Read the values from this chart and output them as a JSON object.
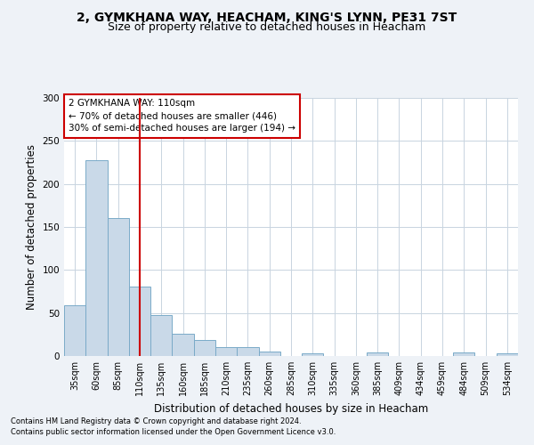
{
  "title_line1": "2, GYMKHANA WAY, HEACHAM, KING'S LYNN, PE31 7ST",
  "title_line2": "Size of property relative to detached houses in Heacham",
  "xlabel": "Distribution of detached houses by size in Heacham",
  "ylabel": "Number of detached properties",
  "footnote1": "Contains HM Land Registry data © Crown copyright and database right 2024.",
  "footnote2": "Contains public sector information licensed under the Open Government Licence v3.0.",
  "bin_labels": [
    "35sqm",
    "60sqm",
    "85sqm",
    "110sqm",
    "135sqm",
    "160sqm",
    "185sqm",
    "210sqm",
    "235sqm",
    "260sqm",
    "285sqm",
    "310sqm",
    "335sqm",
    "360sqm",
    "385sqm",
    "409sqm",
    "434sqm",
    "459sqm",
    "484sqm",
    "509sqm",
    "534sqm"
  ],
  "bar_values": [
    59,
    228,
    160,
    81,
    48,
    26,
    19,
    10,
    10,
    5,
    0,
    3,
    0,
    0,
    4,
    0,
    0,
    0,
    4,
    0,
    3
  ],
  "bar_color": "#c9d9e8",
  "bar_edge_color": "#7aaac8",
  "bar_edge_width": 0.7,
  "vline_x": 3,
  "vline_color": "#cc0000",
  "annotation_text": "2 GYMKHANA WAY: 110sqm\n← 70% of detached houses are smaller (446)\n30% of semi-detached houses are larger (194) →",
  "box_edge_color": "#cc0000",
  "ylim": [
    0,
    300
  ],
  "yticks": [
    0,
    50,
    100,
    150,
    200,
    250,
    300
  ],
  "bg_color": "#eef2f7",
  "plot_bg_color": "#ffffff",
  "grid_color": "#c8d4e0",
  "title_fontsize": 10,
  "subtitle_fontsize": 9,
  "ylabel_fontsize": 8.5,
  "xlabel_fontsize": 8.5,
  "tick_fontsize": 7,
  "annot_fontsize": 7.5,
  "footnote_fontsize": 6
}
